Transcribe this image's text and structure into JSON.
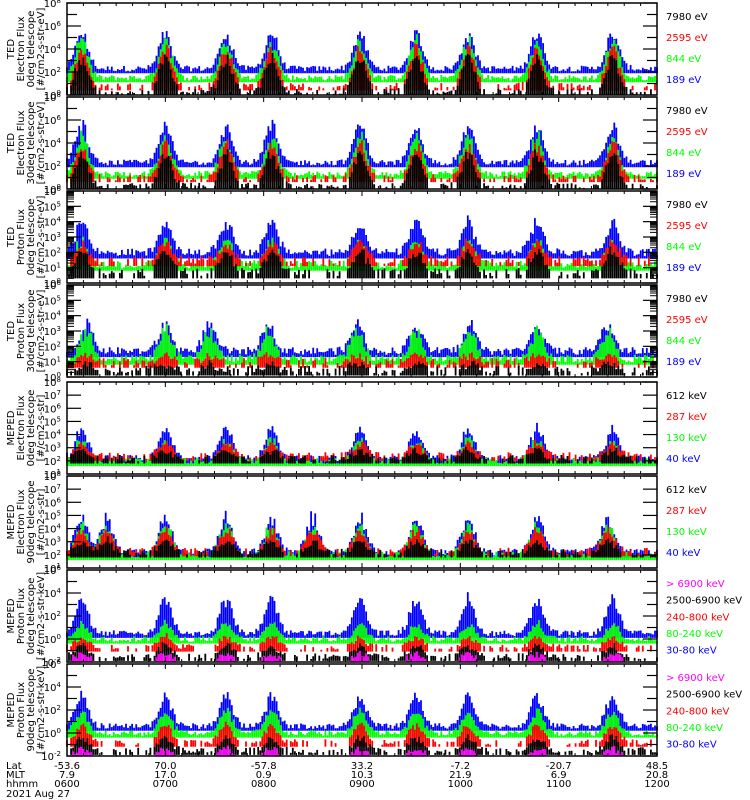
{
  "chart_data": {
    "type": "line",
    "date_label": "2021 Aug 27",
    "x_axis": {
      "row_labels": [
        "Lat",
        "MLT",
        "hhmm"
      ],
      "time_range_hours": [
        6.0,
        12.0
      ],
      "ticks": [
        {
          "hour": 6,
          "lat": "-53.6",
          "mlt": "7.9",
          "hhmm": "0600"
        },
        {
          "hour": 7,
          "lat": "70.0",
          "mlt": "17.0",
          "hhmm": "0700"
        },
        {
          "hour": 8,
          "lat": "-57.8",
          "mlt": "0.9",
          "hhmm": "0800"
        },
        {
          "hour": 9,
          "lat": "33.2",
          "mlt": "10.3",
          "hhmm": "0900"
        },
        {
          "hour": 10,
          "lat": "-7.2",
          "mlt": "21.9",
          "hhmm": "1000"
        },
        {
          "hour": 11,
          "lat": "-20.7",
          "mlt": "6.9",
          "hhmm": "1100"
        },
        {
          "hour": 12,
          "lat": "48.5",
          "mlt": "20.8",
          "hhmm": "1200"
        }
      ]
    },
    "colors": {
      "black": "#000000",
      "red": "#ff0000",
      "green": "#00ff00",
      "blue": "#0000ff",
      "magenta": "#ff00ff"
    },
    "panels": [
      {
        "ylabel_lines": [
          "TED",
          "Electron Flux",
          "0deg telescope",
          "[#/cm2-s-str-eV]"
        ],
        "ylim_exp": [
          0,
          8
        ],
        "tick_exps": [
          0,
          2,
          4,
          6,
          8
        ],
        "minor_step": 1,
        "peaks": [
          6.15,
          7.0,
          7.62,
          8.08,
          8.98,
          9.55,
          10.08,
          10.78,
          11.55
        ],
        "legend": [
          {
            "label": "7980 eV",
            "color": "black"
          },
          {
            "label": "2595 eV",
            "color": "red"
          },
          {
            "label": "844 eV",
            "color": "green"
          },
          {
            "label": "189 eV",
            "color": "blue"
          }
        ],
        "series_levels": {
          "blue": [
            2.3,
            5.8
          ],
          "green": [
            1.5,
            5.2
          ],
          "red": [
            0.8,
            4.5
          ],
          "black": [
            0.3,
            3.6
          ]
        }
      },
      {
        "ylabel_lines": [
          "TED",
          "Electron Flux",
          "30deg telescope",
          "[#/cm2-s-str-eV]"
        ],
        "ylim_exp": [
          0,
          8
        ],
        "tick_exps": [
          0,
          2,
          4,
          6,
          8
        ],
        "minor_step": 1,
        "peaks": [
          6.15,
          7.0,
          7.62,
          8.08,
          8.98,
          9.55,
          10.08,
          10.78,
          11.55
        ],
        "legend": [
          {
            "label": "7980 eV",
            "color": "black"
          },
          {
            "label": "2595 eV",
            "color": "red"
          },
          {
            "label": "844 eV",
            "color": "green"
          },
          {
            "label": "189 eV",
            "color": "blue"
          }
        ],
        "series_levels": {
          "blue": [
            2.3,
            6.0
          ],
          "green": [
            1.3,
            5.0
          ],
          "red": [
            1.0,
            4.3
          ],
          "black": [
            0.3,
            3.5
          ]
        }
      },
      {
        "ylabel_lines": [
          "TED",
          "Proton Flux",
          "0deg telescope",
          "[#/cm2-s-str-eV]"
        ],
        "ylim_exp": [
          0,
          6
        ],
        "tick_exps": [
          0,
          1,
          2,
          3,
          4,
          5,
          6
        ],
        "minor_step": 0.1,
        "peaks": [
          6.15,
          7.0,
          7.62,
          8.08,
          8.98,
          9.55,
          10.08,
          10.78,
          11.55
        ],
        "legend": [
          {
            "label": "7980 eV",
            "color": "black"
          },
          {
            "label": "2595 eV",
            "color": "red"
          },
          {
            "label": "844 eV",
            "color": "green"
          },
          {
            "label": "189 eV",
            "color": "blue"
          }
        ],
        "series_levels": {
          "blue": [
            2.0,
            4.3
          ],
          "green": [
            1.2,
            3.0
          ],
          "red": [
            1.5,
            2.8
          ],
          "black": [
            0.7,
            2.3
          ]
        }
      },
      {
        "ylabel_lines": [
          "TED",
          "Proton Flux",
          "30deg telescope",
          "[#/cm2-s-str-eV]"
        ],
        "ylim_exp": [
          0,
          6
        ],
        "tick_exps": [
          0,
          1,
          2,
          3,
          4,
          5,
          6
        ],
        "minor_step": 0.1,
        "peaks": [
          6.2,
          7.0,
          7.45,
          8.05,
          8.95,
          9.55,
          10.1,
          10.78,
          11.5
        ],
        "legend": [
          {
            "label": "7980 eV",
            "color": "black"
          },
          {
            "label": "2595 eV",
            "color": "red"
          },
          {
            "label": "844 eV",
            "color": "green"
          },
          {
            "label": "189 eV",
            "color": "blue"
          }
        ],
        "series_levels": {
          "blue": [
            1.7,
            3.7
          ],
          "green": [
            1.2,
            3.3
          ],
          "red": [
            1.0,
            1.5
          ],
          "black": [
            0.5,
            0.9
          ]
        }
      },
      {
        "ylabel_lines": [
          "MEPED",
          "Electron Flux",
          "0deg telescope",
          "[#/cm2-s-str]"
        ],
        "ylim_exp": [
          1,
          8
        ],
        "tick_exps": [
          1,
          2,
          3,
          4,
          5,
          6,
          7,
          8
        ],
        "minor_step": 1,
        "peaks": [
          6.15,
          7.0,
          7.62,
          8.08,
          8.98,
          9.55,
          10.08,
          10.78,
          11.55
        ],
        "legend": [
          {
            "label": "612 keV",
            "color": "black"
          },
          {
            "label": "287 keV",
            "color": "red"
          },
          {
            "label": "130 keV",
            "color": "green"
          },
          {
            "label": "40 keV",
            "color": "blue"
          }
        ],
        "series_levels": {
          "blue": [
            2.2,
            4.8
          ],
          "green": [
            2.0,
            3.8
          ],
          "red": [
            2.4,
            3.5
          ],
          "black": [
            2.2,
            2.9
          ]
        }
      },
      {
        "ylabel_lines": [
          "MEPED",
          "Electron Flux",
          "90deg telescope",
          "[#/cm2-s-str]"
        ],
        "ylim_exp": [
          1,
          8
        ],
        "tick_exps": [
          1,
          2,
          3,
          4,
          5,
          6,
          7,
          8
        ],
        "minor_step": 1,
        "peaks": [
          6.15,
          6.4,
          7.0,
          7.62,
          8.08,
          8.5,
          8.98,
          9.55,
          10.08,
          10.78,
          11.5
        ],
        "legend": [
          {
            "label": "612 keV",
            "color": "black"
          },
          {
            "label": "287 keV",
            "color": "red"
          },
          {
            "label": "130 keV",
            "color": "green"
          },
          {
            "label": "40 keV",
            "color": "blue"
          }
        ],
        "series_levels": {
          "blue": [
            2.2,
            5.2
          ],
          "green": [
            2.0,
            4.6
          ],
          "red": [
            2.3,
            4.1
          ],
          "black": [
            2.2,
            3.2
          ]
        }
      },
      {
        "ylabel_lines": [
          "MEPED",
          "Proton Flux",
          "0deg telescope",
          "[#/cm2-s-str-keV]"
        ],
        "ylim_exp": [
          -2,
          6
        ],
        "tick_exps": [
          -2,
          0,
          2,
          4,
          6
        ],
        "minor_step": 1,
        "peaks": [
          6.15,
          7.0,
          7.62,
          8.08,
          8.98,
          9.55,
          10.08,
          10.78,
          11.55
        ],
        "legend": [
          {
            "label": "> 6900 keV",
            "color": "magenta"
          },
          {
            "label": "2500-6900 keV",
            "color": "black"
          },
          {
            "label": "240-800 keV",
            "color": "red"
          },
          {
            "label": "80-240 keV",
            "color": "green"
          },
          {
            "label": "30-80 keV",
            "color": "blue"
          }
        ],
        "series_levels": {
          "blue": [
            0.5,
            4.0
          ],
          "green": [
            0.0,
            1.5
          ],
          "red": [
            -0.7,
            0.3
          ],
          "black": [
            -1.5,
            -0.4
          ],
          "magenta": [
            -1.8,
            -1.2
          ]
        }
      },
      {
        "ylabel_lines": [
          "MEPED",
          "Proton Flux",
          "90deg telescope",
          "[#/cm2-s-str-keV]"
        ],
        "ylim_exp": [
          -2,
          6
        ],
        "tick_exps": [
          -2,
          0,
          2,
          4,
          6
        ],
        "minor_step": 1,
        "peaks": [
          6.15,
          7.0,
          7.62,
          8.08,
          8.98,
          9.55,
          10.08,
          10.78,
          11.55
        ],
        "legend": [
          {
            "label": "> 6900 keV",
            "color": "magenta"
          },
          {
            "label": "2500-6900 keV",
            "color": "black"
          },
          {
            "label": "240-800 keV",
            "color": "red"
          },
          {
            "label": "80-240 keV",
            "color": "green"
          },
          {
            "label": "30-80 keV",
            "color": "blue"
          }
        ],
        "series_levels": {
          "blue": [
            0.6,
            3.6
          ],
          "green": [
            0.0,
            2.2
          ],
          "red": [
            -0.8,
            0.9
          ],
          "black": [
            -1.5,
            -0.2
          ],
          "magenta": [
            -1.9,
            -1.3
          ]
        }
      }
    ]
  }
}
